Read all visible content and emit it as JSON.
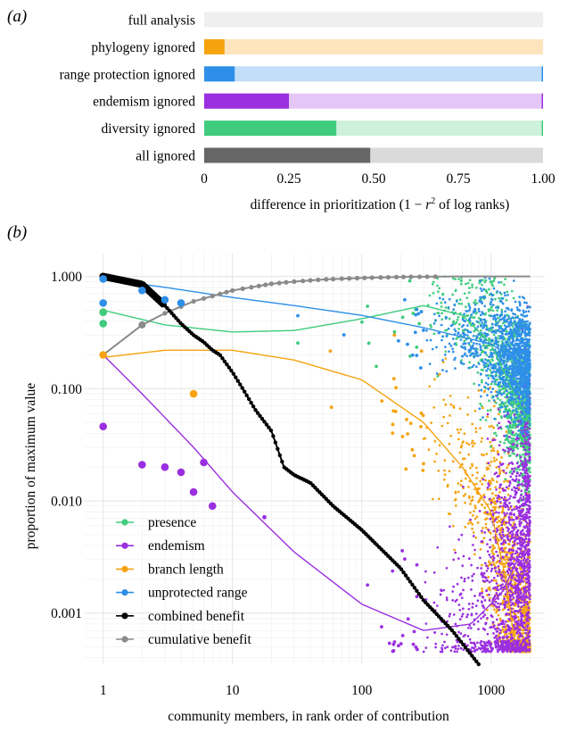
{
  "chart_data": [
    {
      "panel_label": "(a)",
      "type": "bar",
      "orientation": "horizontal",
      "stacked_with_background": true,
      "categories": [
        "full analysis",
        "phylogeny ignored",
        "range protection ignored",
        "endemism ignored",
        "diversity ignored",
        "all ignored"
      ],
      "values": [
        0.0,
        0.06,
        0.09,
        0.25,
        0.39,
        0.49
      ],
      "bar_colors": [
        "#bdbdbd",
        "#f5a30f",
        "#2e8fe8",
        "#9a2fe0",
        "#3fcc7e",
        "#666666"
      ],
      "background_colors": [
        "#efefef",
        "#fde4bd",
        "#c2def8",
        "#e6c6f7",
        "#cdf1db",
        "#dadada"
      ],
      "xlim": [
        0,
        1
      ],
      "xticks": [
        "0",
        "0.25",
        "0.50",
        "0.75",
        "1.00"
      ],
      "xlabel_prefix": "difference in prioritization (1 − ",
      "xlabel_var": "r",
      "xlabel_sup": "2",
      "xlabel_suffix": " of log ranks)"
    },
    {
      "panel_label": "(b)",
      "type": "scatter",
      "x_scale": "log",
      "y_scale": "log",
      "xlim": [
        0.72,
        2600
      ],
      "ylim": [
        0.00035,
        1.6
      ],
      "xticks": [
        "1",
        "10",
        "100",
        "1000"
      ],
      "yticks": [
        "1.000",
        "0.100",
        "0.010",
        "0.001"
      ],
      "xlabel": "community members, in rank order of contribution",
      "ylabel": "proportion of maximum value",
      "legend_position": "bottom-left",
      "series": [
        {
          "name": "presence",
          "color": "#3fcc7e",
          "first_points": [
            [
              1,
              0.38
            ],
            [
              1,
              0.48
            ]
          ],
          "trend": [
            [
              1,
              0.5
            ],
            [
              3,
              0.37
            ],
            [
              10,
              0.32
            ],
            [
              30,
              0.33
            ],
            [
              100,
              0.42
            ],
            [
              300,
              0.55
            ],
            [
              600,
              0.45
            ],
            [
              1000,
              0.25
            ],
            [
              1500,
              0.09
            ],
            [
              2000,
              0.05
            ]
          ]
        },
        {
          "name": "endemism",
          "color": "#9a2fe0",
          "first_points": [
            [
              1,
              0.046
            ],
            [
              2,
              0.021
            ],
            [
              3,
              0.02
            ],
            [
              4,
              0.018
            ],
            [
              5,
              0.012
            ],
            [
              6,
              0.022
            ],
            [
              7,
              0.009
            ]
          ],
          "trend": [
            [
              1,
              0.2
            ],
            [
              2,
              0.09
            ],
            [
              5,
              0.03
            ],
            [
              10,
              0.012
            ],
            [
              30,
              0.0035
            ],
            [
              100,
              0.0012
            ],
            [
              300,
              0.0007
            ],
            [
              700,
              0.0008
            ],
            [
              1200,
              0.0015
            ],
            [
              1600,
              0.003
            ],
            [
              2000,
              0.006
            ]
          ]
        },
        {
          "name": "branch length",
          "color": "#f5a30f",
          "first_points": [
            [
              1,
              0.48
            ],
            [
              1,
              0.2
            ],
            [
              5,
              0.09
            ]
          ],
          "trend": [
            [
              1,
              0.19
            ],
            [
              3,
              0.22
            ],
            [
              10,
              0.22
            ],
            [
              30,
              0.18
            ],
            [
              100,
              0.12
            ],
            [
              300,
              0.05
            ],
            [
              600,
              0.02
            ],
            [
              1000,
              0.008
            ],
            [
              1300,
              0.002
            ],
            [
              1500,
              0.0006
            ]
          ]
        },
        {
          "name": "unprotected range",
          "color": "#2e8fe8",
          "first_points": [
            [
              1,
              0.95
            ],
            [
              1,
              0.58
            ],
            [
              2,
              0.75
            ],
            [
              3,
              0.62
            ],
            [
              4,
              0.58
            ]
          ],
          "trend": [
            [
              1,
              0.95
            ],
            [
              3,
              0.8
            ],
            [
              10,
              0.65
            ],
            [
              30,
              0.55
            ],
            [
              100,
              0.45
            ],
            [
              300,
              0.35
            ],
            [
              1000,
              0.25
            ],
            [
              2000,
              0.15
            ]
          ]
        },
        {
          "name": "combined benefit",
          "color": "#000000",
          "curve": [
            [
              1,
              1.0
            ],
            [
              2,
              0.85
            ],
            [
              3,
              0.55
            ],
            [
              4,
              0.38
            ],
            [
              5,
              0.3
            ],
            [
              6,
              0.26
            ],
            [
              7,
              0.22
            ],
            [
              8,
              0.2
            ],
            [
              10,
              0.14
            ],
            [
              12,
              0.1
            ],
            [
              15,
              0.065
            ],
            [
              20,
              0.042
            ],
            [
              25,
              0.02
            ],
            [
              30,
              0.017
            ],
            [
              40,
              0.0145
            ],
            [
              60,
              0.009
            ],
            [
              100,
              0.0055
            ],
            [
              200,
              0.0025
            ],
            [
              300,
              0.0013
            ],
            [
              500,
              0.0007
            ],
            [
              800,
              0.00035
            ]
          ]
        },
        {
          "name": "cumulative benefit",
          "color": "#8a8a8a",
          "curve": [
            [
              1,
              0.2
            ],
            [
              2,
              0.37
            ],
            [
              3,
              0.47
            ],
            [
              5,
              0.6
            ],
            [
              10,
              0.75
            ],
            [
              20,
              0.86
            ],
            [
              30,
              0.9
            ],
            [
              50,
              0.94
            ],
            [
              100,
              0.97
            ],
            [
              200,
              0.99
            ],
            [
              500,
              1.0
            ],
            [
              2000,
              1.0
            ]
          ]
        }
      ]
    }
  ]
}
